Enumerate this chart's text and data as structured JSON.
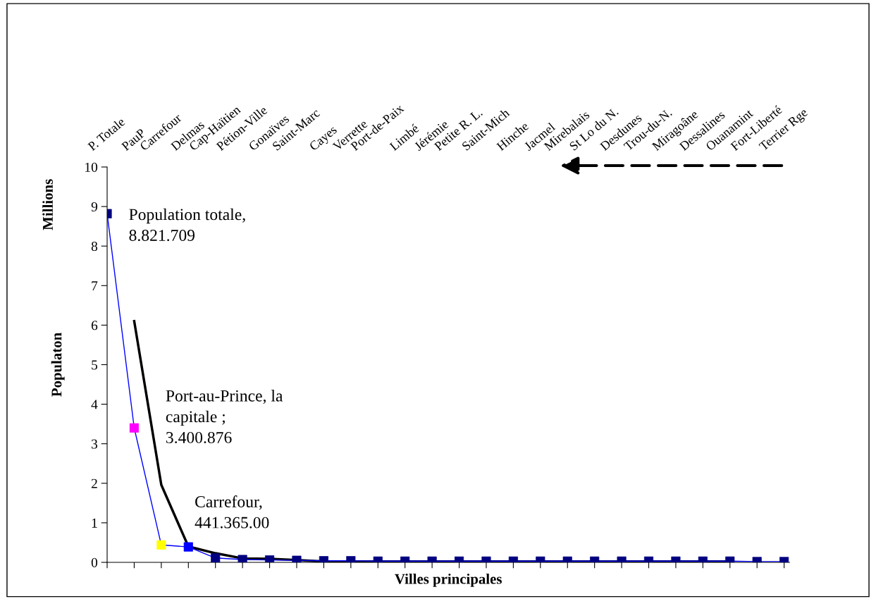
{
  "chart_data": {
    "type": "line",
    "xlabel": "Villes principales",
    "ylabel": "Populaton",
    "categories": [
      "P. Totale",
      "PauP",
      "Carrefour",
      "Delmas",
      "Cap-Haïtien",
      "Pétion-Ville",
      "Gonaïves",
      "Saint-Marc",
      "Cayes",
      "Verrette",
      "Port-de-Paix",
      "Limbé",
      "Jérémie",
      "Petite R. L.",
      "Saint-Mich",
      "Hinche",
      "Jacmel",
      "Mirebalais",
      "St Lo du N.",
      "Desdunes",
      "Trou-du-N.",
      "Miragoâne",
      "Dessalines",
      "Ouanamint",
      "Fort-Liberté",
      "Terrier Rge"
    ],
    "series": [
      {
        "color": "#0000ff",
        "marker": "square",
        "colors": [
          "#000080",
          "#ff00ff",
          "#ffff00",
          "#0000ff",
          "#000080",
          "#000080",
          "#000080",
          "#000080",
          "#000080",
          "#000080",
          "#000080",
          "#000080",
          "#000080",
          "#000080",
          "#000080",
          "#000080",
          "#000080",
          "#000080",
          "#000080",
          "#000080",
          "#000080",
          "#000080",
          "#000080",
          "#000080",
          "#000080",
          "#000080"
        ],
        "values": [
          8.82,
          3.4,
          0.44,
          0.39,
          0.11,
          0.07,
          0.06,
          0.05,
          0.04,
          0.04,
          0.03,
          0.03,
          0.03,
          0.03,
          0.03,
          0.03,
          0.03,
          0.03,
          0.03,
          0.03,
          0.03,
          0.03,
          0.03,
          0.03,
          0.02,
          0.02
        ]
      },
      {
        "color": "#000000",
        "marker": "none",
        "values": [
          null,
          6.1,
          1.96,
          0.4,
          0.23,
          0.1,
          0.09,
          0.06,
          0.02,
          0.02,
          0.02,
          0.02,
          0.02,
          0.02,
          0.02,
          0.02,
          0.02,
          0.02,
          0.02,
          0.02,
          0.02,
          0.02,
          0.02,
          0.02,
          null,
          null
        ]
      }
    ],
    "ylim": [
      0,
      10
    ],
    "yticks": [
      0,
      1,
      2,
      3,
      4,
      5,
      6,
      7,
      8,
      9,
      10
    ],
    "grid": false,
    "annotations": [
      {
        "text": "Population totale,\n8.821.709",
        "x": "P. Totale",
        "y": 8.82
      },
      {
        "text": "Port-au-Prince, la\ncapitale ;\n3.400.876",
        "x": "PauP",
        "y": 3.4
      },
      {
        "text": "Carrefour,\n441.365.00",
        "x": "Carrefour",
        "y": 0.44
      },
      "Millions"
    ]
  }
}
